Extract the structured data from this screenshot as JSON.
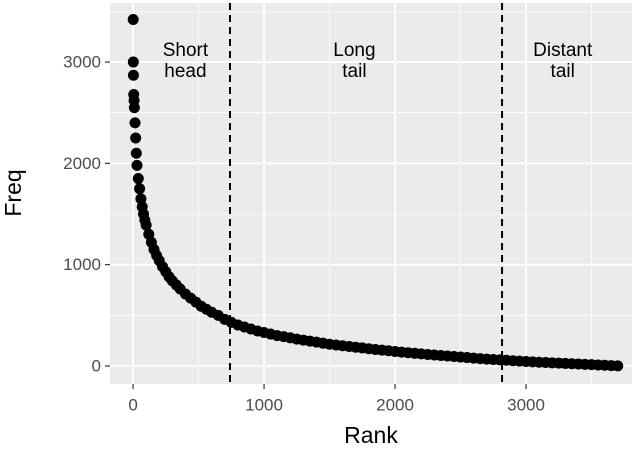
{
  "chart_data": {
    "type": "scatter",
    "x_label": "Rank",
    "y_label": "Freq",
    "xlim": [
      -176,
      3809
    ],
    "ylim": [
      -178,
      3583
    ],
    "xticks": [
      0,
      1000,
      2000,
      3000
    ],
    "yticks": [
      0,
      1000,
      2000,
      3000
    ],
    "x_minor_grid": [
      500,
      1500,
      2500,
      3500
    ],
    "y_minor_grid": [
      500,
      1500,
      2500,
      3500
    ],
    "grid": true,
    "color": "#000000",
    "vlines": [
      740,
      2817
    ],
    "annotations": [
      {
        "lines": [
          "Short",
          "head"
        ],
        "x": 400,
        "y": 3000
      },
      {
        "lines": [
          "Long",
          "tail"
        ],
        "x": 1690,
        "y": 3000
      },
      {
        "lines": [
          "Distant",
          "tail"
        ],
        "x": 3280,
        "y": 3000
      }
    ],
    "series": [
      {
        "name": "Freq",
        "color": "#000000",
        "x": [
          1,
          2,
          3,
          5,
          8,
          10,
          15,
          20,
          25,
          30,
          40,
          50,
          60,
          70,
          80,
          90,
          100,
          120,
          140,
          160,
          180,
          200,
          225,
          250,
          275,
          300,
          330,
          360,
          400,
          440,
          480,
          520,
          560,
          600,
          650,
          700,
          750,
          800,
          850,
          900,
          950,
          1000,
          1050,
          1100,
          1150,
          1200,
          1250,
          1300,
          1350,
          1400,
          1450,
          1500,
          1550,
          1600,
          1650,
          1700,
          1750,
          1800,
          1850,
          1900,
          1950,
          2000,
          2050,
          2100,
          2150,
          2200,
          2250,
          2300,
          2350,
          2400,
          2450,
          2500,
          2550,
          2600,
          2650,
          2700,
          2750,
          2800,
          2850,
          2900,
          2950,
          3000,
          3050,
          3100,
          3150,
          3200,
          3250,
          3300,
          3350,
          3400,
          3450,
          3500,
          3550,
          3600,
          3650,
          3700
        ],
        "values": [
          3420,
          3000,
          2870,
          2680,
          2620,
          2550,
          2400,
          2250,
          2100,
          1980,
          1850,
          1750,
          1650,
          1570,
          1500,
          1440,
          1390,
          1300,
          1220,
          1150,
          1090,
          1040,
          980,
          930,
          880,
          840,
          800,
          760,
          710,
          670,
          630,
          590,
          560,
          530,
          500,
          460,
          430,
          405,
          385,
          365,
          345,
          330,
          315,
          300,
          290,
          278,
          265,
          255,
          245,
          235,
          225,
          215,
          207,
          200,
          192,
          185,
          178,
          170,
          163,
          157,
          150,
          143,
          137,
          131,
          125,
          119,
          113,
          108,
          103,
          98,
          93,
          88,
          83,
          78,
          73,
          68,
          64,
          60,
          56,
          52,
          48,
          44,
          40,
          37,
          34,
          31,
          28,
          25,
          22,
          19,
          16,
          13,
          10,
          7,
          4,
          1
        ]
      }
    ]
  }
}
